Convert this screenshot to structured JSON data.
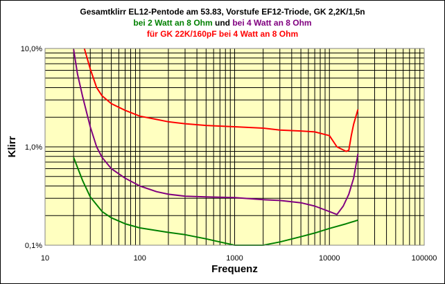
{
  "title": {
    "line1": "Gesamtklirr EL12-Pentode am 53.83, Vorstufe EF12-Triode, GK 2,2K/1,5n",
    "line2a": "bei 2 Watt an 8 Ohm",
    "line2b": " und ",
    "line2c": "bei 4 Watt an 8 Ohm",
    "line3": "für GK 22K/160pF bei 4 Watt an 8 Ohm"
  },
  "colors": {
    "plot_bg": "#ffffc0",
    "green": "#008000",
    "purple": "#800080",
    "red": "#ff0000",
    "grid": "#000000"
  },
  "chart_data": {
    "type": "line",
    "xlabel": "Frequenz",
    "ylabel": "Klirr",
    "xscale": "log",
    "yscale": "log",
    "xlim": [
      10,
      100000
    ],
    "ylim": [
      0.1,
      10
    ],
    "x_tick_labels": [
      "10",
      "100",
      "1000",
      "10000",
      "100000"
    ],
    "y_tick_labels": [
      "0,1%",
      "1,0%",
      "10,0%"
    ],
    "grid": true,
    "legend": "none",
    "series": [
      {
        "color": "#008000",
        "points": [
          [
            20,
            0.78
          ],
          [
            25,
            0.45
          ],
          [
            30,
            0.31
          ],
          [
            40,
            0.22
          ],
          [
            50,
            0.19
          ],
          [
            70,
            0.165
          ],
          [
            100,
            0.15
          ],
          [
            200,
            0.135
          ],
          [
            300,
            0.128
          ],
          [
            500,
            0.116
          ],
          [
            700,
            0.108
          ],
          [
            1000,
            0.1
          ],
          [
            2000,
            0.1
          ],
          [
            3000,
            0.108
          ],
          [
            5000,
            0.122
          ],
          [
            7000,
            0.133
          ],
          [
            10000,
            0.148
          ],
          [
            15000,
            0.165
          ],
          [
            20000,
            0.18
          ]
        ]
      },
      {
        "color": "#800080",
        "points": [
          [
            20,
            9.8
          ],
          [
            22,
            5.5
          ],
          [
            25,
            3.2
          ],
          [
            30,
            1.6
          ],
          [
            35,
            1.0
          ],
          [
            40,
            0.78
          ],
          [
            50,
            0.6
          ],
          [
            70,
            0.48
          ],
          [
            100,
            0.4
          ],
          [
            150,
            0.35
          ],
          [
            200,
            0.33
          ],
          [
            300,
            0.315
          ],
          [
            500,
            0.31
          ],
          [
            1000,
            0.305
          ],
          [
            2000,
            0.29
          ],
          [
            3000,
            0.285
          ],
          [
            5000,
            0.27
          ],
          [
            7000,
            0.25
          ],
          [
            10000,
            0.22
          ],
          [
            12000,
            0.205
          ],
          [
            14000,
            0.25
          ],
          [
            16000,
            0.33
          ],
          [
            18000,
            0.48
          ],
          [
            20000,
            0.85
          ]
        ]
      },
      {
        "color": "#ff0000",
        "points": [
          [
            26,
            10
          ],
          [
            30,
            6.2
          ],
          [
            35,
            4.0
          ],
          [
            40,
            3.3
          ],
          [
            50,
            2.75
          ],
          [
            70,
            2.35
          ],
          [
            100,
            2.05
          ],
          [
            150,
            1.9
          ],
          [
            200,
            1.8
          ],
          [
            300,
            1.72
          ],
          [
            500,
            1.65
          ],
          [
            1000,
            1.6
          ],
          [
            2000,
            1.55
          ],
          [
            3000,
            1.48
          ],
          [
            5000,
            1.45
          ],
          [
            7000,
            1.42
          ],
          [
            10000,
            1.3
          ],
          [
            12000,
            1.0
          ],
          [
            15000,
            0.9
          ],
          [
            16000,
            0.92
          ],
          [
            17000,
            1.3
          ],
          [
            18000,
            1.7
          ],
          [
            20000,
            2.4
          ]
        ]
      }
    ]
  }
}
